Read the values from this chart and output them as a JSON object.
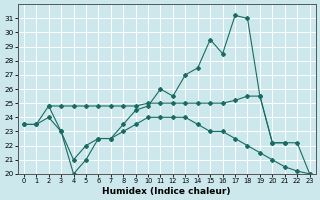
{
  "xlabel": "Humidex (Indice chaleur)",
  "bg_color": "#cde8ec",
  "grid_color": "#ffffff",
  "line_color": "#1a6b62",
  "xlim": [
    -0.5,
    23.5
  ],
  "ylim": [
    20,
    32
  ],
  "xticks": [
    0,
    1,
    2,
    3,
    4,
    5,
    6,
    7,
    8,
    9,
    10,
    11,
    12,
    13,
    14,
    15,
    16,
    17,
    18,
    19,
    20,
    21,
    22,
    23
  ],
  "yticks": [
    20,
    21,
    22,
    23,
    24,
    25,
    26,
    27,
    28,
    29,
    30,
    31
  ],
  "series": [
    {
      "x": [
        0,
        1,
        2,
        3,
        4,
        5,
        6,
        7,
        8,
        9,
        10,
        11,
        12,
        13,
        14,
        15,
        16,
        17,
        18,
        19,
        20,
        21,
        22,
        23
      ],
      "y": [
        23.5,
        23.5,
        24.0,
        23.0,
        21.0,
        22.0,
        22.5,
        22.5,
        23.0,
        23.5,
        24.0,
        24.0,
        24.0,
        24.0,
        23.5,
        23.0,
        23.0,
        22.5,
        22.0,
        21.5,
        21.0,
        20.5,
        20.2,
        20.0
      ]
    },
    {
      "x": [
        0,
        1,
        2,
        3,
        4,
        5,
        6,
        7,
        8,
        9,
        10,
        11,
        12,
        13,
        14,
        15,
        16,
        17,
        18,
        19,
        20,
        21
      ],
      "y": [
        23.5,
        23.5,
        24.8,
        24.8,
        24.8,
        24.8,
        24.8,
        24.8,
        24.8,
        24.8,
        25.0,
        25.0,
        25.0,
        25.0,
        25.0,
        25.0,
        25.0,
        25.2,
        25.5,
        25.5,
        22.2,
        22.2
      ]
    },
    {
      "x": [
        2,
        3,
        4,
        5,
        6,
        7,
        8,
        9,
        10,
        11,
        12,
        13,
        14,
        15,
        16,
        17,
        18,
        19,
        20,
        21,
        22,
        23
      ],
      "y": [
        24.8,
        23.0,
        20.0,
        21.0,
        22.5,
        22.5,
        23.5,
        24.5,
        24.8,
        26.0,
        25.5,
        27.0,
        27.5,
        29.5,
        28.5,
        31.2,
        31.0,
        25.5,
        22.2,
        22.2,
        22.2,
        20.0
      ]
    }
  ]
}
